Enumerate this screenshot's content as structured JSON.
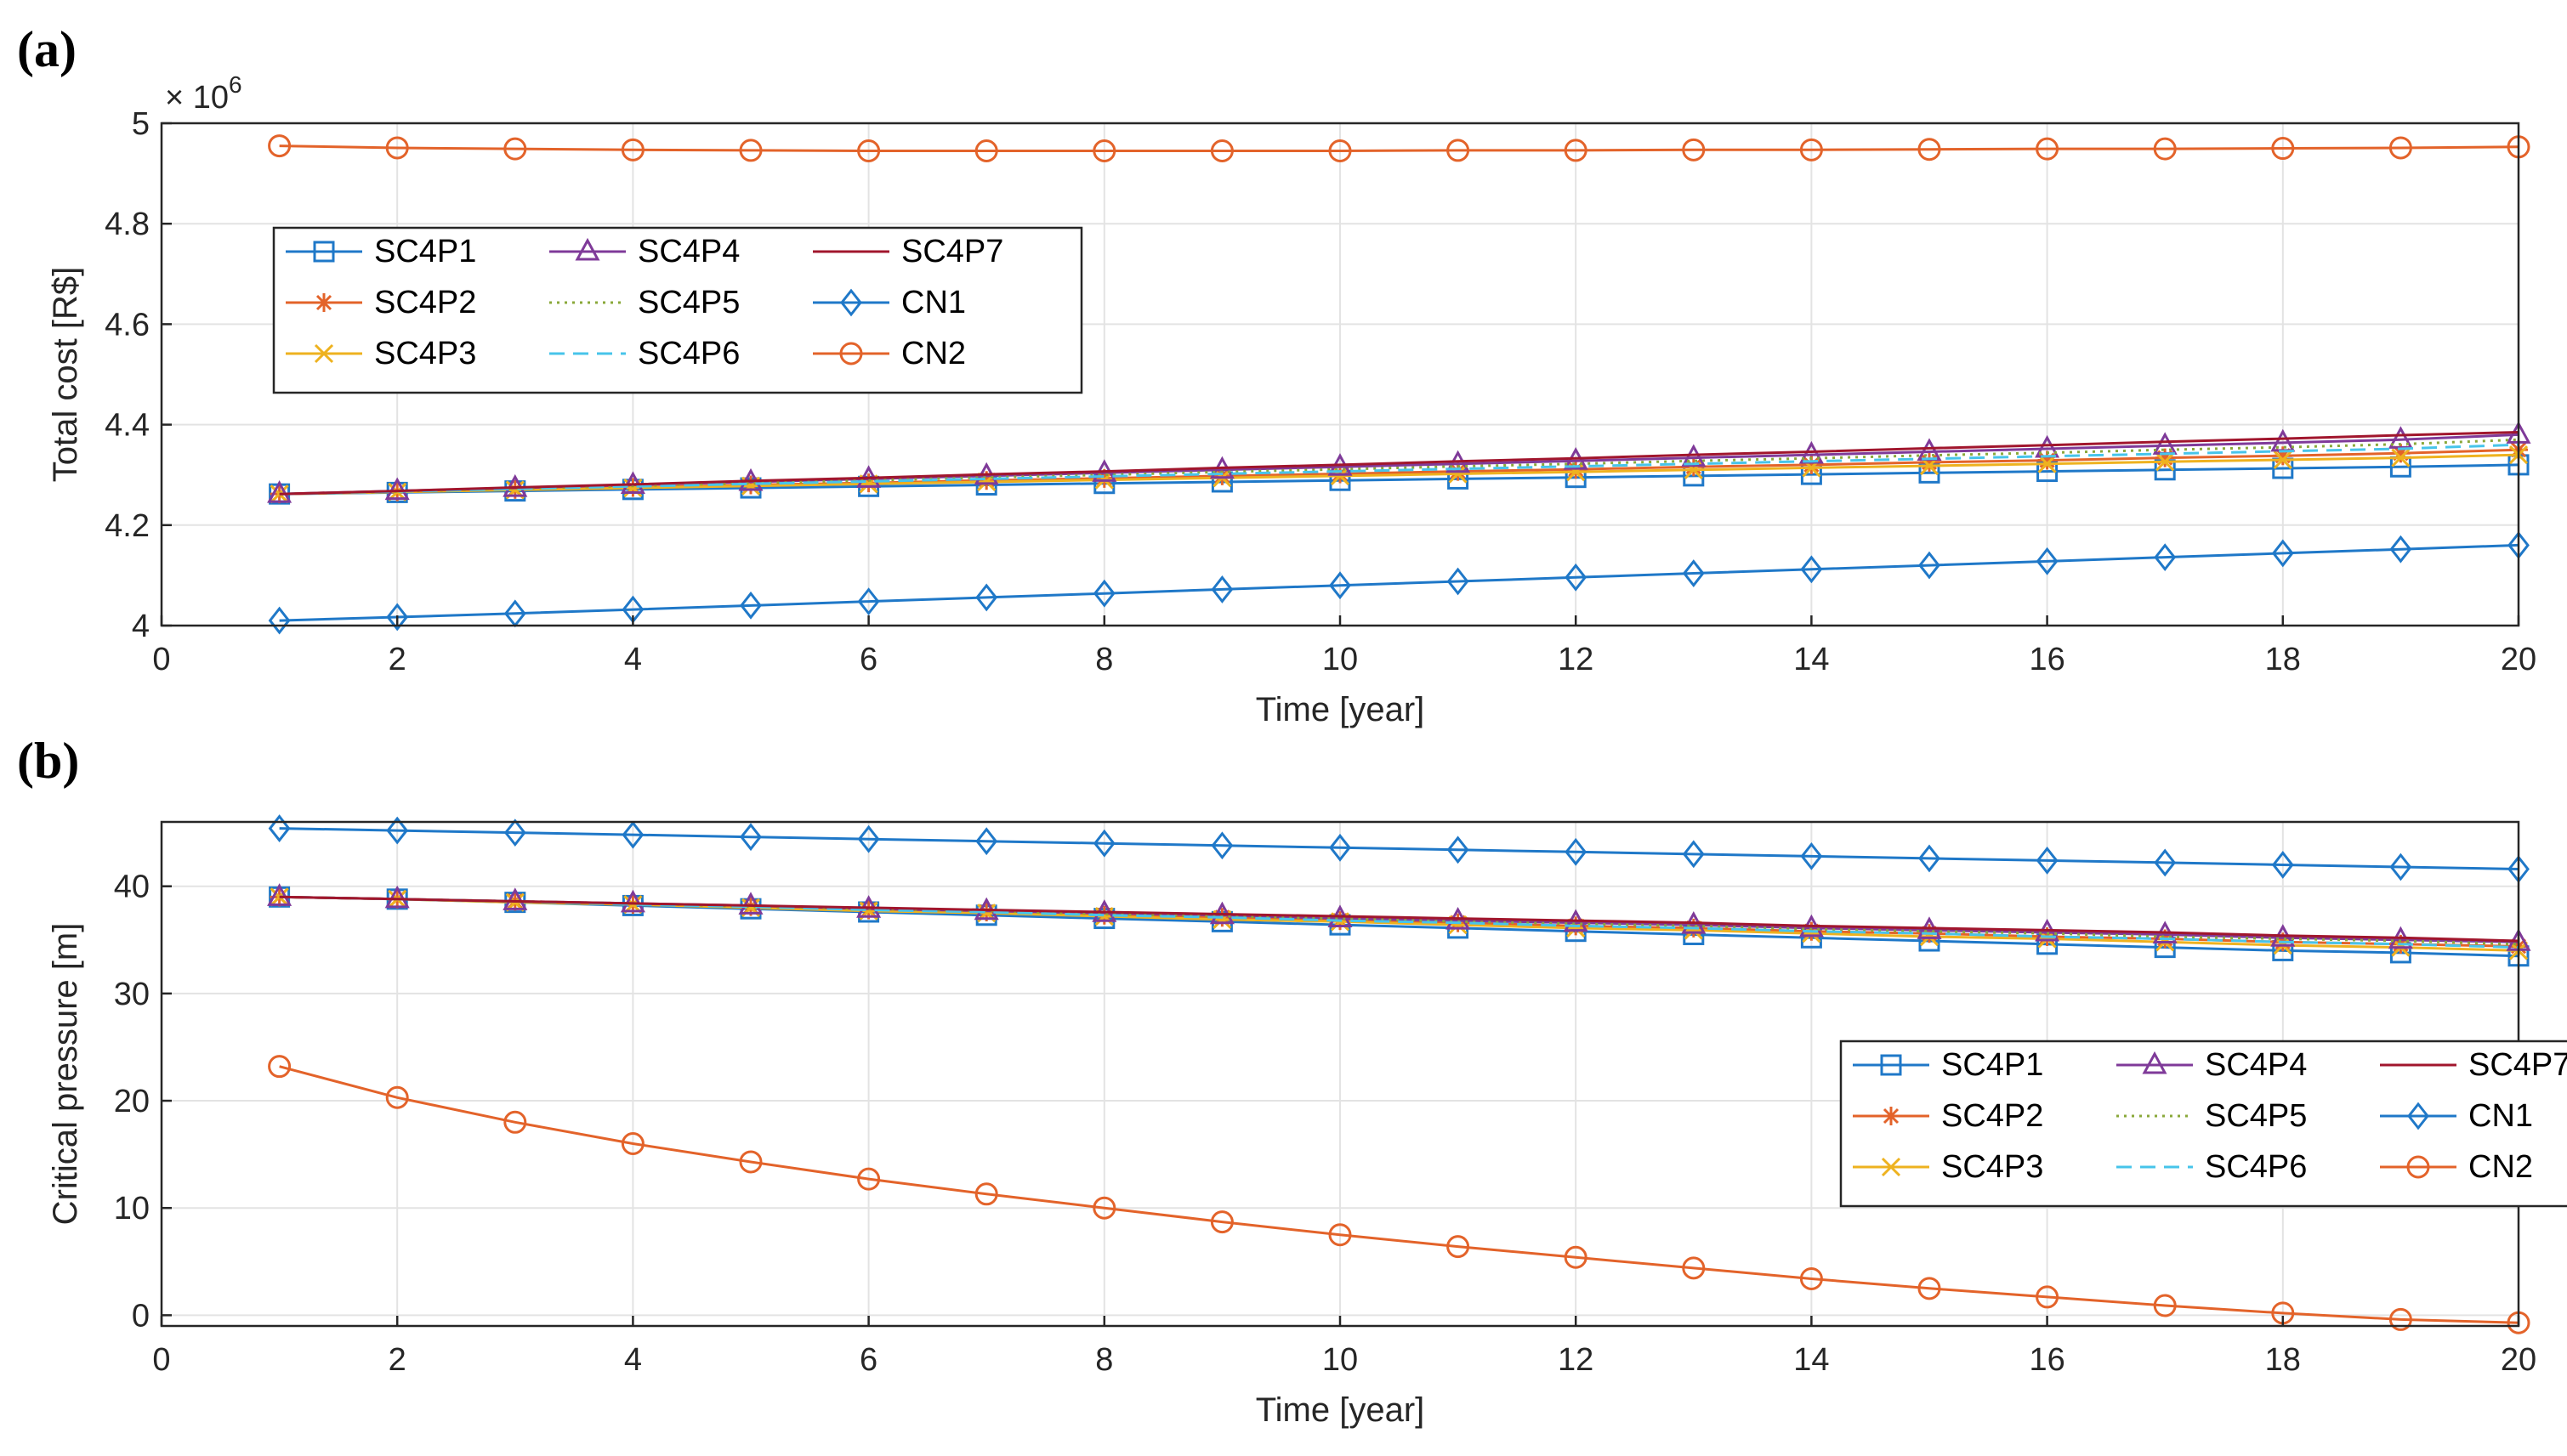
{
  "panel_labels": [
    "(a)",
    "(b)"
  ],
  "colors": {
    "blue": "#1f78c8",
    "orange": "#e3632a",
    "yellow": "#eeb21f",
    "purple": "#7f3a99",
    "green": "#8aa83a",
    "cyan": "#47c4ea",
    "darkred": "#a1162d"
  },
  "chart_data": [
    {
      "type": "line",
      "panel": "(a)",
      "title": "",
      "xlabel": "Time [year]",
      "ylabel": "Total cost [R$]",
      "y_multiplier_label": "× 10^6",
      "xlim": [
        0,
        20
      ],
      "ylim": [
        4.0,
        5.0
      ],
      "xticks": [
        0,
        2,
        4,
        6,
        8,
        10,
        12,
        14,
        16,
        18,
        20
      ],
      "yticks": [
        4,
        4.2,
        4.4,
        4.6,
        4.8,
        5
      ],
      "ytick_labels": [
        "4",
        "4.2",
        "4.4",
        "4.6",
        "4.8",
        "5"
      ],
      "grid": true,
      "legend_position": "top-left",
      "x": [
        1,
        2,
        3,
        4,
        5,
        6,
        7,
        8,
        9,
        10,
        11,
        12,
        13,
        14,
        15,
        16,
        17,
        18,
        19,
        20
      ],
      "series": [
        {
          "name": "SC4P1",
          "color": "blue",
          "marker": "square",
          "dash": "solid",
          "values": [
            4.262,
            4.265,
            4.268,
            4.271,
            4.274,
            4.277,
            4.28,
            4.283,
            4.286,
            4.289,
            4.292,
            4.295,
            4.298,
            4.301,
            4.304,
            4.307,
            4.31,
            4.313,
            4.316,
            4.32
          ]
        },
        {
          "name": "SC4P2",
          "color": "orange",
          "marker": "star",
          "dash": "solid",
          "values": [
            4.262,
            4.266,
            4.271,
            4.275,
            4.28,
            4.284,
            4.289,
            4.293,
            4.298,
            4.302,
            4.307,
            4.311,
            4.316,
            4.32,
            4.325,
            4.329,
            4.334,
            4.338,
            4.343,
            4.35
          ]
        },
        {
          "name": "SC4P3",
          "color": "yellow",
          "marker": "x",
          "dash": "solid",
          "values": [
            4.262,
            4.266,
            4.27,
            4.274,
            4.278,
            4.282,
            4.286,
            4.29,
            4.294,
            4.298,
            4.302,
            4.306,
            4.31,
            4.314,
            4.318,
            4.322,
            4.326,
            4.33,
            4.334,
            4.34
          ]
        },
        {
          "name": "SC4P4",
          "color": "purple",
          "marker": "triangle",
          "dash": "solid",
          "values": [
            4.262,
            4.268,
            4.274,
            4.28,
            4.286,
            4.292,
            4.298,
            4.304,
            4.31,
            4.316,
            4.322,
            4.328,
            4.334,
            4.34,
            4.346,
            4.352,
            4.358,
            4.364,
            4.37,
            4.38
          ]
        },
        {
          "name": "SC4P5",
          "color": "green",
          "marker": "none",
          "dash": "dotted",
          "values": [
            4.262,
            4.267,
            4.273,
            4.278,
            4.284,
            4.289,
            4.295,
            4.3,
            4.306,
            4.311,
            4.317,
            4.322,
            4.328,
            4.333,
            4.339,
            4.344,
            4.35,
            4.355,
            4.361,
            4.37
          ]
        },
        {
          "name": "SC4P6",
          "color": "cyan",
          "marker": "none",
          "dash": "dashed",
          "values": [
            4.262,
            4.267,
            4.272,
            4.277,
            4.282,
            4.287,
            4.292,
            4.297,
            4.302,
            4.307,
            4.312,
            4.317,
            4.322,
            4.327,
            4.332,
            4.337,
            4.342,
            4.347,
            4.352,
            4.36
          ]
        },
        {
          "name": "SC4P7",
          "color": "darkred",
          "marker": "none",
          "dash": "solid",
          "values": [
            4.262,
            4.268,
            4.275,
            4.281,
            4.288,
            4.294,
            4.301,
            4.307,
            4.314,
            4.32,
            4.327,
            4.333,
            4.34,
            4.346,
            4.353,
            4.359,
            4.366,
            4.372,
            4.379,
            4.385
          ]
        },
        {
          "name": "CN1",
          "color": "blue",
          "marker": "diamond",
          "dash": "solid",
          "values": [
            4.01,
            4.017,
            4.024,
            4.032,
            4.04,
            4.048,
            4.056,
            4.064,
            4.072,
            4.08,
            4.088,
            4.096,
            4.104,
            4.112,
            4.12,
            4.128,
            4.136,
            4.144,
            4.152,
            4.16
          ]
        },
        {
          "name": "CN2",
          "color": "orange",
          "marker": "circle",
          "dash": "solid",
          "values": [
            4.955,
            4.951,
            4.949,
            4.947,
            4.946,
            4.945,
            4.945,
            4.945,
            4.945,
            4.945,
            4.946,
            4.946,
            4.947,
            4.947,
            4.948,
            4.949,
            4.949,
            4.95,
            4.951,
            4.953
          ]
        }
      ]
    },
    {
      "type": "line",
      "panel": "(b)",
      "title": "",
      "xlabel": "Time [year]",
      "ylabel": "Critical pressure [m]",
      "xlim": [
        0,
        20
      ],
      "ylim": [
        -1,
        46
      ],
      "xticks": [
        0,
        2,
        4,
        6,
        8,
        10,
        12,
        14,
        16,
        18,
        20
      ],
      "yticks": [
        0,
        10,
        20,
        30,
        40
      ],
      "ytick_labels": [
        "0",
        "10",
        "20",
        "30",
        "40"
      ],
      "grid": true,
      "legend_position": "right-center",
      "x": [
        1,
        2,
        3,
        4,
        5,
        6,
        7,
        8,
        9,
        10,
        11,
        12,
        13,
        14,
        15,
        16,
        17,
        18,
        19,
        20
      ],
      "series": [
        {
          "name": "SC4P1",
          "color": "blue",
          "marker": "square",
          "dash": "solid",
          "values": [
            39.0,
            38.8,
            38.5,
            38.2,
            37.9,
            37.6,
            37.3,
            37.0,
            36.7,
            36.4,
            36.1,
            35.8,
            35.5,
            35.2,
            34.9,
            34.6,
            34.3,
            34.0,
            33.8,
            33.5
          ]
        },
        {
          "name": "SC4P2",
          "color": "orange",
          "marker": "star",
          "dash": "solid",
          "values": [
            39.0,
            38.8,
            38.6,
            38.3,
            38.1,
            37.8,
            37.6,
            37.3,
            37.1,
            36.8,
            36.6,
            36.3,
            36.1,
            35.8,
            35.6,
            35.3,
            35.1,
            34.8,
            34.6,
            34.4
          ]
        },
        {
          "name": "SC4P3",
          "color": "yellow",
          "marker": "x",
          "dash": "solid",
          "values": [
            39.0,
            38.8,
            38.5,
            38.3,
            38.0,
            37.7,
            37.5,
            37.2,
            36.9,
            36.7,
            36.4,
            36.1,
            35.9,
            35.6,
            35.3,
            35.1,
            34.8,
            34.5,
            34.3,
            34.0
          ]
        },
        {
          "name": "SC4P4",
          "color": "purple",
          "marker": "triangle",
          "dash": "solid",
          "values": [
            39.0,
            38.8,
            38.6,
            38.4,
            38.2,
            37.9,
            37.7,
            37.5,
            37.3,
            37.0,
            36.8,
            36.6,
            36.4,
            36.1,
            35.9,
            35.7,
            35.5,
            35.2,
            35.0,
            34.8
          ]
        },
        {
          "name": "SC4P5",
          "color": "green",
          "marker": "none",
          "dash": "dotted",
          "values": [
            39.0,
            38.8,
            38.6,
            38.4,
            38.1,
            37.9,
            37.7,
            37.4,
            37.2,
            37.0,
            36.7,
            36.5,
            36.3,
            36.0,
            35.8,
            35.6,
            35.3,
            35.1,
            34.9,
            34.6
          ]
        },
        {
          "name": "SC4P6",
          "color": "cyan",
          "marker": "none",
          "dash": "dashed",
          "values": [
            39.0,
            38.8,
            38.6,
            38.3,
            38.1,
            37.8,
            37.6,
            37.3,
            37.1,
            36.8,
            36.6,
            36.3,
            36.1,
            35.8,
            35.6,
            35.3,
            35.1,
            34.8,
            34.6,
            34.3
          ]
        },
        {
          "name": "SC4P7",
          "color": "darkred",
          "marker": "none",
          "dash": "solid",
          "values": [
            39.0,
            38.8,
            38.6,
            38.4,
            38.2,
            38.0,
            37.8,
            37.6,
            37.4,
            37.2,
            37.0,
            36.8,
            36.6,
            36.3,
            36.1,
            35.9,
            35.7,
            35.4,
            35.2,
            34.9
          ]
        },
        {
          "name": "CN1",
          "color": "blue",
          "marker": "diamond",
          "dash": "solid",
          "values": [
            45.4,
            45.2,
            45.0,
            44.8,
            44.6,
            44.4,
            44.2,
            44.0,
            43.8,
            43.6,
            43.4,
            43.2,
            43.0,
            42.8,
            42.6,
            42.4,
            42.2,
            42.0,
            41.8,
            41.6
          ]
        },
        {
          "name": "CN2",
          "color": "orange",
          "marker": "circle",
          "dash": "solid",
          "values": [
            23.2,
            20.3,
            18.0,
            16.0,
            14.3,
            12.7,
            11.3,
            10.0,
            8.7,
            7.5,
            6.4,
            5.4,
            4.4,
            3.4,
            2.5,
            1.7,
            0.9,
            0.2,
            -0.4,
            -0.7
          ]
        }
      ]
    }
  ]
}
